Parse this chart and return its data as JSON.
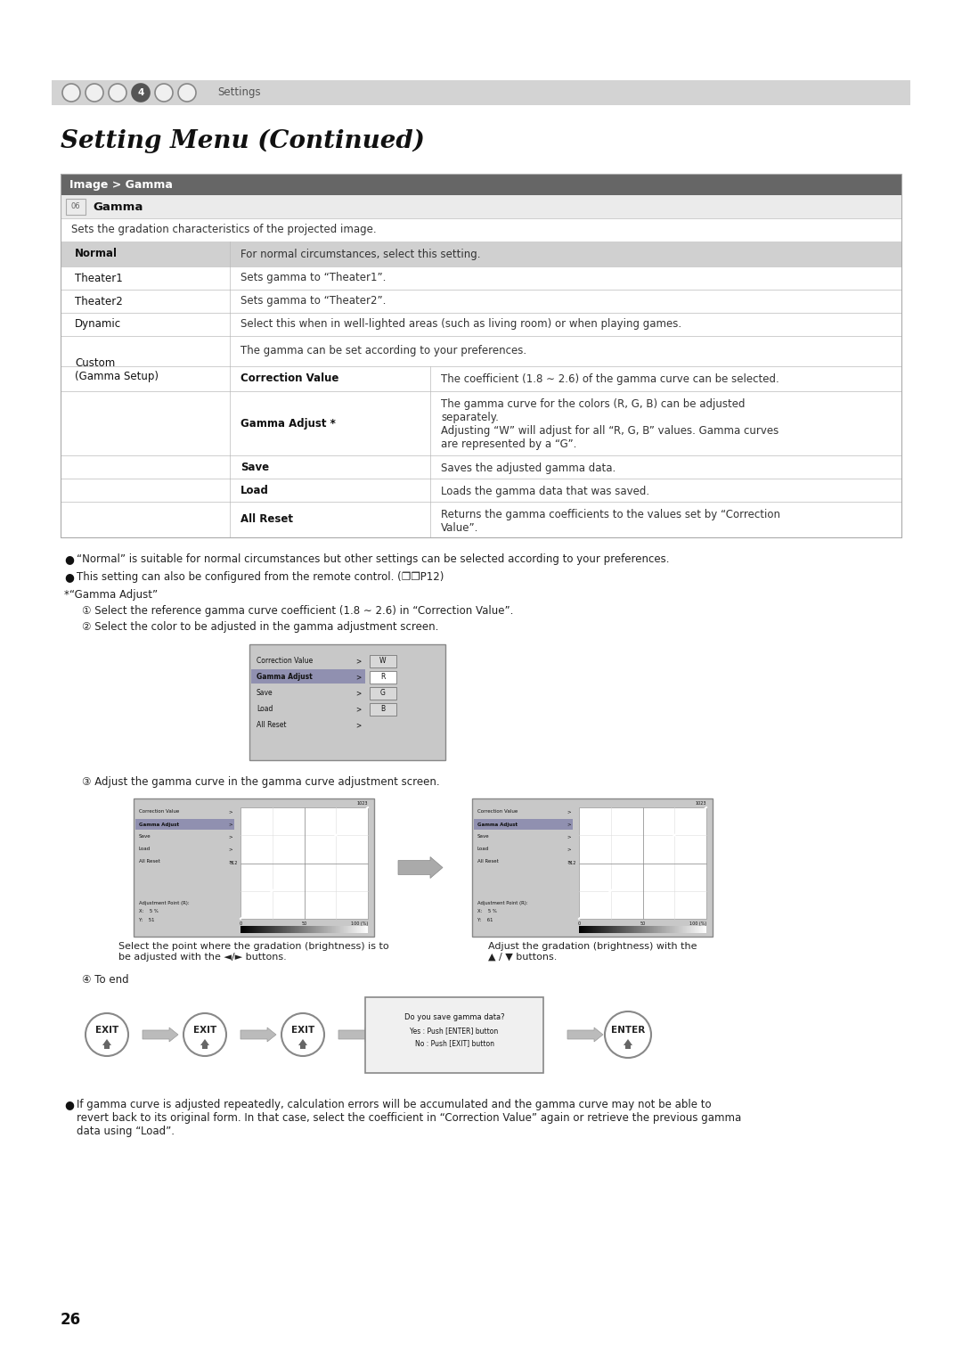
{
  "bg_color": "#ffffff",
  "title": "Setting Menu (Continued)",
  "nav_bar_color": "#d3d3d3",
  "nav_text": "Settings",
  "table_header_text": "Image > Gamma",
  "table_subheader_text": "Gamma",
  "table_desc": "Sets the gradation characteristics of the projected image.",
  "bullet1": "“Normal” is suitable for normal circumstances but other settings can be selected according to your preferences.",
  "bullet2": "This setting can also be configured from the remote control. (❐❐P12)",
  "asterisk_note": "*“Gamma Adjust”",
  "step1": "① Select the reference gamma curve coefficient (1.8 ∼ 2.6) in “Correction Value”.",
  "step2": "② Select the color to be adjusted in the gamma adjustment screen.",
  "step3": "③ Adjust the gamma curve in the gamma curve adjustment screen.",
  "step4": "④ To end",
  "caption_left": "Select the point where the gradation (brightness) is to\nbe adjusted with the ◄/► buttons.",
  "caption_right": "Adjust the gradation (brightness) with the\n▲ / ▼ buttons.",
  "dlg_line1": "Do you save gamma data?",
  "dlg_line2": "Yes : Push [ENTER] button",
  "dlg_line3": "No : Push [EXIT] button",
  "footer_bullet": "If gamma curve is adjusted repeatedly, calculation errors will be accumulated and the gamma curve may not be able to\nrevert back to its original form. In that case, select the coefficient in “Correction Value” again or retrieve the previous gamma\ndata using “Load”.",
  "page_number": "26"
}
